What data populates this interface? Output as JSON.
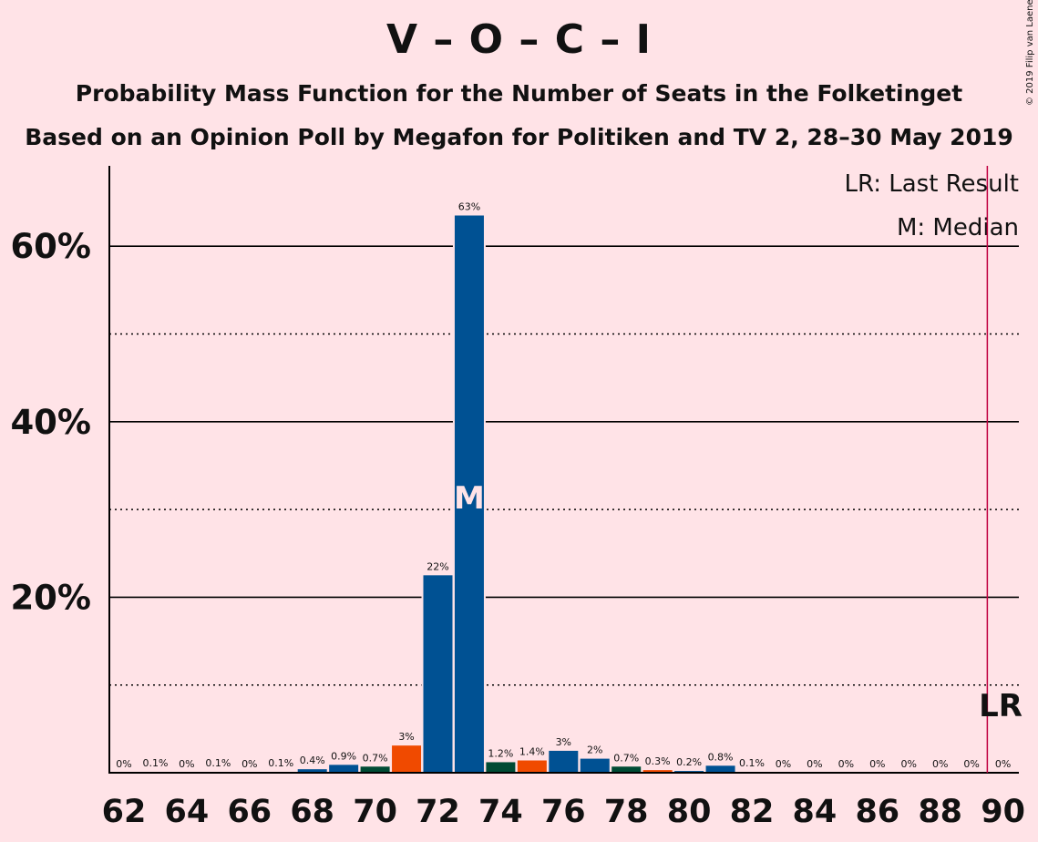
{
  "title": "V – O – C – I",
  "subtitle1": "Probability Mass Function for the Number of Seats in the Folketinget",
  "subtitle2": "Based on an Opinion Poll by Megafon for Politiken and TV 2, 28–30 May 2019",
  "copyright": "© 2019 Filip van Laenen",
  "chart_data": {
    "type": "bar",
    "x": [
      62,
      63,
      64,
      65,
      66,
      67,
      68,
      69,
      70,
      71,
      72,
      73,
      74,
      75,
      76,
      77,
      78,
      79,
      80,
      81,
      82,
      83,
      84,
      85,
      86,
      87,
      88,
      89,
      90
    ],
    "values": [
      0,
      0.1,
      0,
      0.1,
      0,
      0.1,
      0.4,
      0.9,
      0.7,
      3.1,
      22.5,
      63.5,
      1.2,
      1.4,
      2.5,
      1.6,
      0.7,
      0.3,
      0.2,
      0.8,
      0.1,
      0,
      0,
      0,
      0,
      0,
      0,
      0,
      0
    ],
    "data_labels": [
      "0%",
      "0.1%",
      "0%",
      "0.1%",
      "0%",
      "0.1%",
      "0.4%",
      "0.9%",
      "0.7%",
      "3%",
      "22%",
      "63%",
      "1.2%",
      "1.4%",
      "3%",
      "2%",
      "0.7%",
      "0.3%",
      "0.2%",
      "0.8%",
      "0.1%",
      "0%",
      "0%",
      "0%",
      "0%",
      "0%",
      "0%",
      "0%",
      "0%"
    ],
    "bar_colors": [
      "#005193",
      "#005193",
      "#005193",
      "#005193",
      "#005193",
      "#005193",
      "#005193",
      "#005193",
      "#004B34",
      "#F04A00",
      "#005193",
      "#005193",
      "#004B34",
      "#F04A00",
      "#005193",
      "#005193",
      "#004B34",
      "#F04A00",
      "#005193",
      "#005193",
      "#005193",
      "#005193",
      "#005193",
      "#005193",
      "#005193",
      "#005193",
      "#005193",
      "#005193",
      "#005193"
    ],
    "x_tick_labels": [
      "62",
      "64",
      "66",
      "68",
      "70",
      "72",
      "74",
      "76",
      "78",
      "80",
      "82",
      "84",
      "86",
      "88",
      "90"
    ],
    "y_tick_labels": [
      "20%",
      "40%",
      "60%"
    ],
    "ylim": [
      0,
      69
    ],
    "major_gridlines": [
      20,
      40,
      60
    ],
    "minor_gridlines": [
      10,
      30,
      50
    ],
    "median": 73,
    "median_label": "M",
    "last_result": 89.5,
    "last_result_label": "LR",
    "legend": [
      "LR: Last Result",
      "M: Median"
    ],
    "legend_position": "top-right",
    "colors": {
      "background": "#FFE3E7",
      "last_result_line": "#C00040",
      "median_text": "#FFE3E7"
    }
  }
}
